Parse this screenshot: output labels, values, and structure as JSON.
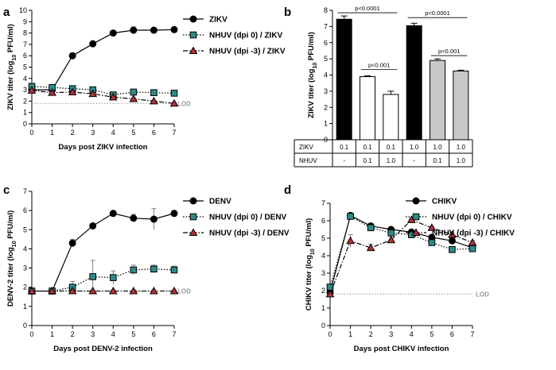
{
  "colors": {
    "black": "#000000",
    "teal": "#2e8b88",
    "red": "#b3323a",
    "gray_bar": "#c8c8c8",
    "lod": "#9a9a9a"
  },
  "chart_data": [
    {
      "panel": "a",
      "type": "line",
      "xlabel": "Days post ZIKV infection",
      "ylabel_main": "ZIKV titer (log",
      "ylabel_sub": "10",
      "ylabel_end": " PFU/ml)",
      "xlim": [
        0,
        7
      ],
      "ylim": [
        0,
        10
      ],
      "x": [
        0,
        1,
        2,
        3,
        4,
        5,
        6,
        7
      ],
      "lod": 1.8,
      "lod_label": "LOD",
      "series": [
        {
          "name": "ZIKV",
          "style": "solid",
          "marker": "circle",
          "color": "#000000",
          "values": [
            3.0,
            3.0,
            6.0,
            7.05,
            8.0,
            8.25,
            8.25,
            8.3
          ],
          "errors": [
            0.1,
            0.1,
            0.1,
            0.1,
            0.1,
            0.3,
            0.1,
            0.1
          ]
        },
        {
          "name": "NHUV (dpi 0) / ZIKV",
          "style": "dotted",
          "marker": "square",
          "color": "#2e8b88",
          "values": [
            3.3,
            3.2,
            3.1,
            3.0,
            2.55,
            2.8,
            2.75,
            2.7
          ],
          "errors": [
            0.25,
            0.1,
            0.1,
            0.1,
            0.15,
            0.1,
            0.1,
            0.1
          ]
        },
        {
          "name": "NHUV (dpi -3) / ZIKV",
          "style": "dashdot",
          "marker": "triangle",
          "color": "#b3323a",
          "values": [
            2.95,
            2.75,
            2.8,
            2.65,
            2.35,
            2.2,
            2.0,
            1.8
          ],
          "errors": [
            0.1,
            0.1,
            0.1,
            0.1,
            0.1,
            0.1,
            0.1,
            0.1
          ]
        }
      ]
    },
    {
      "panel": "b",
      "type": "bar",
      "ylabel_main": "ZIKV titer (log",
      "ylabel_sub": "10",
      "ylabel_end": " PFU/ml)",
      "ylim": [
        0,
        8
      ],
      "values": [
        7.45,
        3.9,
        2.8,
        7.05,
        4.9,
        4.25
      ],
      "errors": [
        0.2,
        0.05,
        0.2,
        0.15,
        0.1,
        0.05
      ],
      "fills": [
        "black",
        "white",
        "white",
        "black",
        "gray",
        "gray"
      ],
      "table": {
        "row_labels": [
          "ZIKV",
          "NHUV"
        ],
        "zikv": [
          "0.1",
          "0.1",
          "0.1",
          "1.0",
          "1.0",
          "1.0"
        ],
        "nhuv": [
          "-",
          "0.1",
          "1.0",
          "-",
          "0.1",
          "1.0"
        ]
      },
      "brackets": [
        {
          "from": 0,
          "to": 2,
          "label": "p<0.0001",
          "y": 7.85
        },
        {
          "from": 1,
          "to": 2,
          "label": "p<0.001",
          "y": 4.35
        },
        {
          "from": 3,
          "to": 5,
          "label": "p<0.0001",
          "y": 7.55
        },
        {
          "from": 4,
          "to": 5,
          "label": "p<0.001",
          "y": 5.2
        }
      ]
    },
    {
      "panel": "c",
      "type": "line",
      "xlabel": "Days post DENV-2 infection",
      "ylabel_main": "DENV-2 titer (log",
      "ylabel_sub": "10",
      "ylabel_end": " PFU/ml)",
      "xlim": [
        0,
        7
      ],
      "ylim": [
        0,
        7
      ],
      "x": [
        0,
        1,
        2,
        3,
        4,
        5,
        6,
        7
      ],
      "lod": 1.8,
      "lod_label": "LOD",
      "series": [
        {
          "name": "DENV",
          "style": "solid",
          "marker": "circle",
          "color": "#000000",
          "values": [
            1.8,
            1.8,
            4.3,
            5.2,
            5.85,
            5.6,
            5.55,
            5.85
          ],
          "errors": [
            0.05,
            0.05,
            0.2,
            0.1,
            0.05,
            0.2,
            0.55,
            0.1
          ]
        },
        {
          "name": "NHUV (dpi 0) / DENV",
          "style": "dotted",
          "marker": "square",
          "color": "#2e8b88",
          "values": [
            1.8,
            1.8,
            2.0,
            2.55,
            2.5,
            2.9,
            2.95,
            2.9
          ],
          "errors": [
            0.05,
            0.05,
            0.3,
            0.85,
            0.35,
            0.25,
            0.2,
            0.2
          ]
        },
        {
          "name": "NHUV (dpi -3) / DENV",
          "style": "dashdot",
          "marker": "triangle",
          "color": "#b3323a",
          "values": [
            1.8,
            1.8,
            1.8,
            1.8,
            1.8,
            1.8,
            1.8,
            1.8
          ],
          "errors": [
            0.05,
            0.05,
            0.05,
            0.05,
            0.05,
            0.05,
            0.05,
            0.05
          ]
        }
      ]
    },
    {
      "panel": "d",
      "type": "line",
      "xlabel": "Days post CHIKV infection",
      "ylabel_main": "CHIKV titer (log",
      "ylabel_sub": "10",
      "ylabel_end": " PFU/ml)",
      "xlim": [
        0,
        7
      ],
      "ylim": [
        0,
        7
      ],
      "x": [
        0,
        1,
        2,
        3,
        4,
        5,
        6,
        7
      ],
      "lod": 1.8,
      "lod_label": "LOD",
      "series": [
        {
          "name": "CHIKV",
          "style": "solid",
          "marker": "circle",
          "color": "#000000",
          "values": [
            1.9,
            6.3,
            5.7,
            5.5,
            5.35,
            5.05,
            4.85,
            4.45
          ],
          "errors": [
            0.15,
            0.1,
            0.15,
            0.1,
            0.1,
            0.1,
            0.1,
            0.2
          ]
        },
        {
          "name": "NHUV (dpi 0) / CHIKV",
          "style": "dotted",
          "marker": "square",
          "color": "#2e8b88",
          "values": [
            2.2,
            6.25,
            5.6,
            5.3,
            5.2,
            4.75,
            4.35,
            4.4
          ],
          "errors": [
            0.15,
            0.15,
            0.15,
            0.1,
            0.1,
            0.1,
            0.1,
            0.15
          ]
        },
        {
          "name": "NHUV (dpi -3) / CHIKV",
          "style": "dashdot",
          "marker": "triangle",
          "color": "#b3323a",
          "values": [
            1.8,
            4.85,
            4.45,
            4.9,
            6.05,
            5.6,
            5.2,
            4.75
          ],
          "errors": [
            0.1,
            0.35,
            0.2,
            0.1,
            0.05,
            0.05,
            0.1,
            0.1
          ]
        }
      ]
    }
  ]
}
